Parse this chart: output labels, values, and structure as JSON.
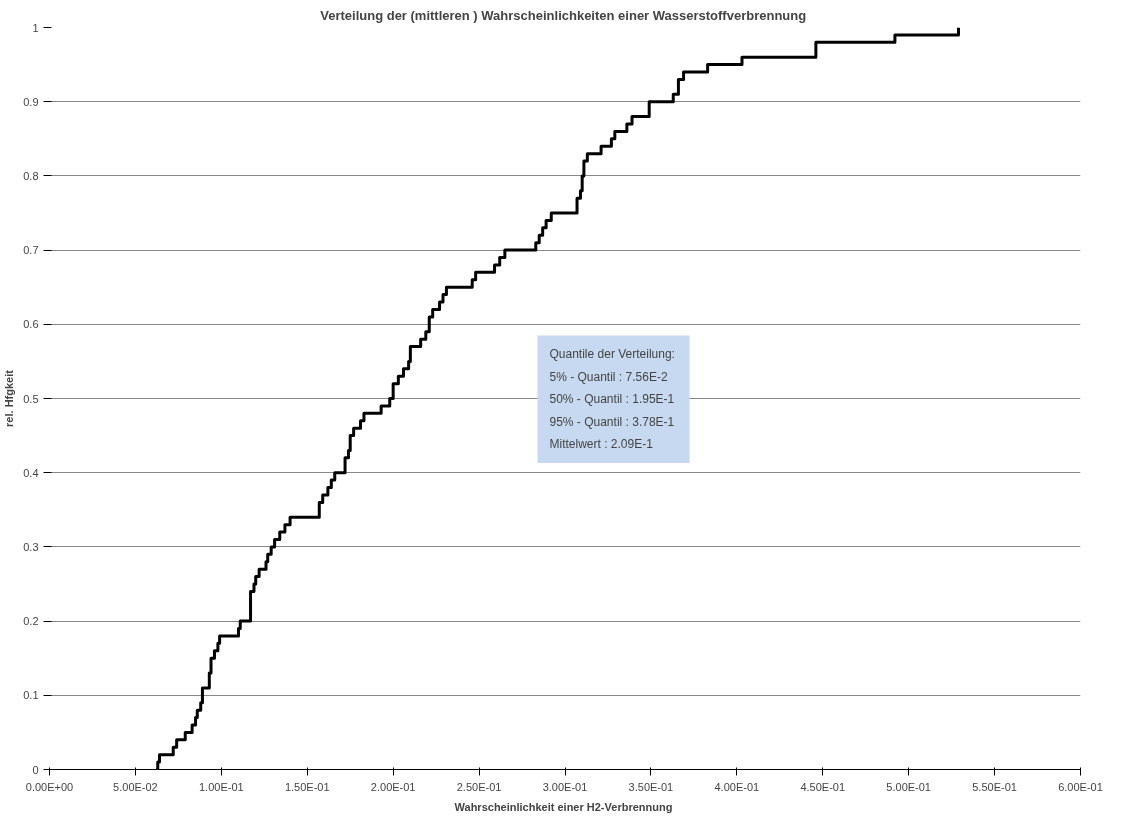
{
  "chart_data": {
    "type": "step",
    "title": "Verteilung der  (mittleren ) Wahrscheinlichkeiten einer Wasserstoffverbrennung",
    "xlabel": "Wahrscheinlichkeit  einer H2-Verbrennung",
    "ylabel": "rel. Hfgkeit",
    "x": [
      0.062,
      0.063,
      0.064,
      0.072,
      0.074,
      0.079,
      0.083,
      0.085,
      0.086,
      0.088,
      0.089,
      0.093,
      0.094,
      0.094,
      0.096,
      0.098,
      0.099,
      0.11,
      0.111,
      0.117,
      0.117,
      0.119,
      0.12,
      0.122,
      0.126,
      0.127,
      0.129,
      0.131,
      0.134,
      0.137,
      0.14,
      0.157,
      0.159,
      0.162,
      0.164,
      0.166,
      0.172,
      0.174,
      0.175,
      0.177,
      0.181,
      0.183,
      0.193,
      0.198,
      0.2,
      0.203,
      0.206,
      0.209,
      0.21,
      0.216,
      0.219,
      0.221,
      0.223,
      0.227,
      0.229,
      0.231,
      0.246,
      0.248,
      0.259,
      0.262,
      0.265,
      0.283,
      0.285,
      0.287,
      0.289,
      0.292,
      0.307,
      0.309,
      0.31,
      0.311,
      0.313,
      0.321,
      0.327,
      0.329,
      0.336,
      0.339,
      0.349,
      0.363,
      0.366,
      0.369,
      0.383,
      0.403,
      0.446,
      0.492,
      0.529
    ],
    "values": [
      0.0,
      0.01,
      0.02,
      0.03,
      0.04,
      0.05,
      0.06,
      0.07,
      0.08,
      0.09,
      0.11,
      0.13,
      0.14,
      0.15,
      0.16,
      0.17,
      0.18,
      0.19,
      0.2,
      0.22,
      0.24,
      0.25,
      0.26,
      0.27,
      0.28,
      0.29,
      0.3,
      0.31,
      0.32,
      0.33,
      0.34,
      0.36,
      0.37,
      0.38,
      0.39,
      0.4,
      0.42,
      0.43,
      0.45,
      0.46,
      0.47,
      0.48,
      0.49,
      0.5,
      0.52,
      0.53,
      0.54,
      0.55,
      0.57,
      0.58,
      0.59,
      0.61,
      0.62,
      0.63,
      0.64,
      0.65,
      0.66,
      0.67,
      0.68,
      0.69,
      0.7,
      0.71,
      0.72,
      0.73,
      0.74,
      0.75,
      0.77,
      0.78,
      0.8,
      0.82,
      0.83,
      0.84,
      0.85,
      0.86,
      0.87,
      0.88,
      0.9,
      0.91,
      0.93,
      0.94,
      0.95,
      0.96,
      0.98,
      0.99,
      1.0
    ],
    "color": "#000000",
    "xlim": [
      0,
      0.6
    ],
    "ylim": [
      0,
      1
    ],
    "xticks": [
      {
        "value": 0,
        "label": "0.00E+00"
      },
      {
        "value": 0.05,
        "label": "5.00E-02"
      },
      {
        "value": 0.1,
        "label": "1.00E-01"
      },
      {
        "value": 0.15,
        "label": "1.50E-01"
      },
      {
        "value": 0.2,
        "label": "2.00E-01"
      },
      {
        "value": 0.25,
        "label": "2.50E-01"
      },
      {
        "value": 0.3,
        "label": "3.00E-01"
      },
      {
        "value": 0.35,
        "label": "3.50E-01"
      },
      {
        "value": 0.4,
        "label": "4.00E-01"
      },
      {
        "value": 0.45,
        "label": "4.50E-01"
      },
      {
        "value": 0.5,
        "label": "5.00E-01"
      },
      {
        "value": 0.55,
        "label": "5.50E-01"
      },
      {
        "value": 0.6,
        "label": "6.00E-01"
      }
    ],
    "yticks": [
      0,
      0.1,
      0.2,
      0.3,
      0.4,
      0.5,
      0.6,
      0.7,
      0.8,
      0.9,
      1
    ],
    "grid": "y",
    "annotations": [
      "Quantile der Verteilung:",
      "5% - Quantil :  7.56E-2",
      "50% - Quantil :  1.95E-1",
      "95% - Quantil :  3.78E-1",
      "Mittelwert : 2.09E-1"
    ]
  }
}
